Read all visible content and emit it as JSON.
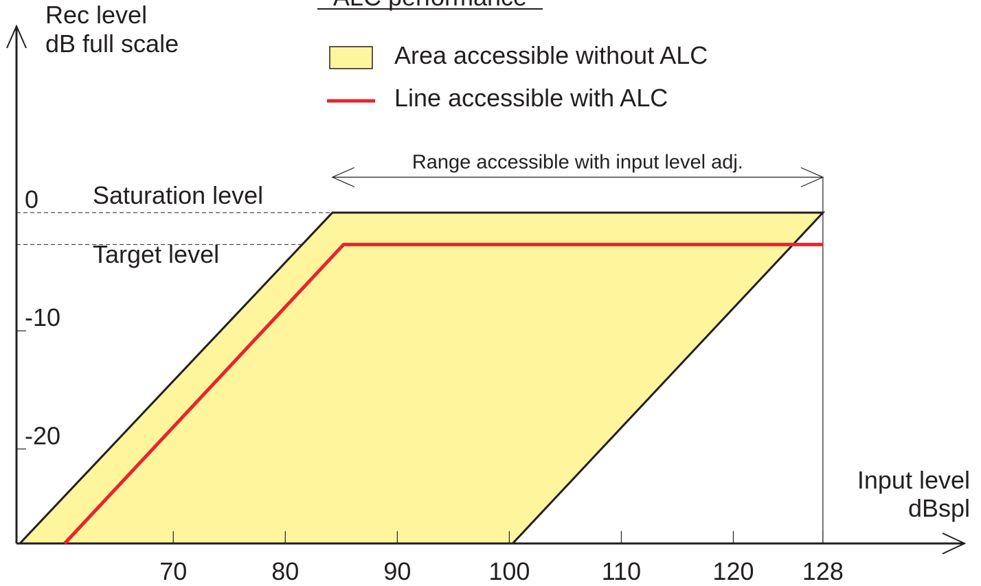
{
  "chart_data": {
    "type": "area",
    "title": "ALC performance",
    "ylabel_line1": "Rec level",
    "ylabel_line2": "dB full scale",
    "xlabel_line1": "Input level",
    "xlabel_line2": "dBspl",
    "x_ticks": [
      70,
      80,
      90,
      100,
      110,
      120,
      128
    ],
    "y_ticks": [
      {
        "value": 0,
        "label": "0"
      },
      {
        "value": -10,
        "label": "-10"
      },
      {
        "value": -20,
        "label": "-20"
      }
    ],
    "xlim": [
      56,
      141.5
    ],
    "ylim": [
      -28,
      18
    ],
    "colors": {
      "area": "#fff59d",
      "alc_line": "#e8252b",
      "outline": "#231f20"
    },
    "legend": [
      {
        "label": "Area accessible without ALC",
        "kind": "area"
      },
      {
        "label": "Line accessible with ALC",
        "kind": "line"
      }
    ],
    "series": [
      {
        "name": "Area accessible without ALC",
        "kind": "area",
        "points": [
          [
            56.3,
            -28
          ],
          [
            84.2,
            0
          ],
          [
            128,
            0
          ],
          [
            100.3,
            -28
          ]
        ]
      },
      {
        "name": "Line accessible with ALC",
        "kind": "line",
        "points": [
          [
            60.3,
            -28
          ],
          [
            85.2,
            -2.7
          ],
          [
            128,
            -2.7
          ]
        ]
      }
    ],
    "reference_lines": [
      {
        "label": "Saturation level",
        "y": 0
      },
      {
        "label": "Target level",
        "y": -2.7
      }
    ],
    "range_annotation": {
      "label": "Range accessible with input level adj.",
      "x": [
        84.2,
        128
      ],
      "y": 3
    }
  }
}
